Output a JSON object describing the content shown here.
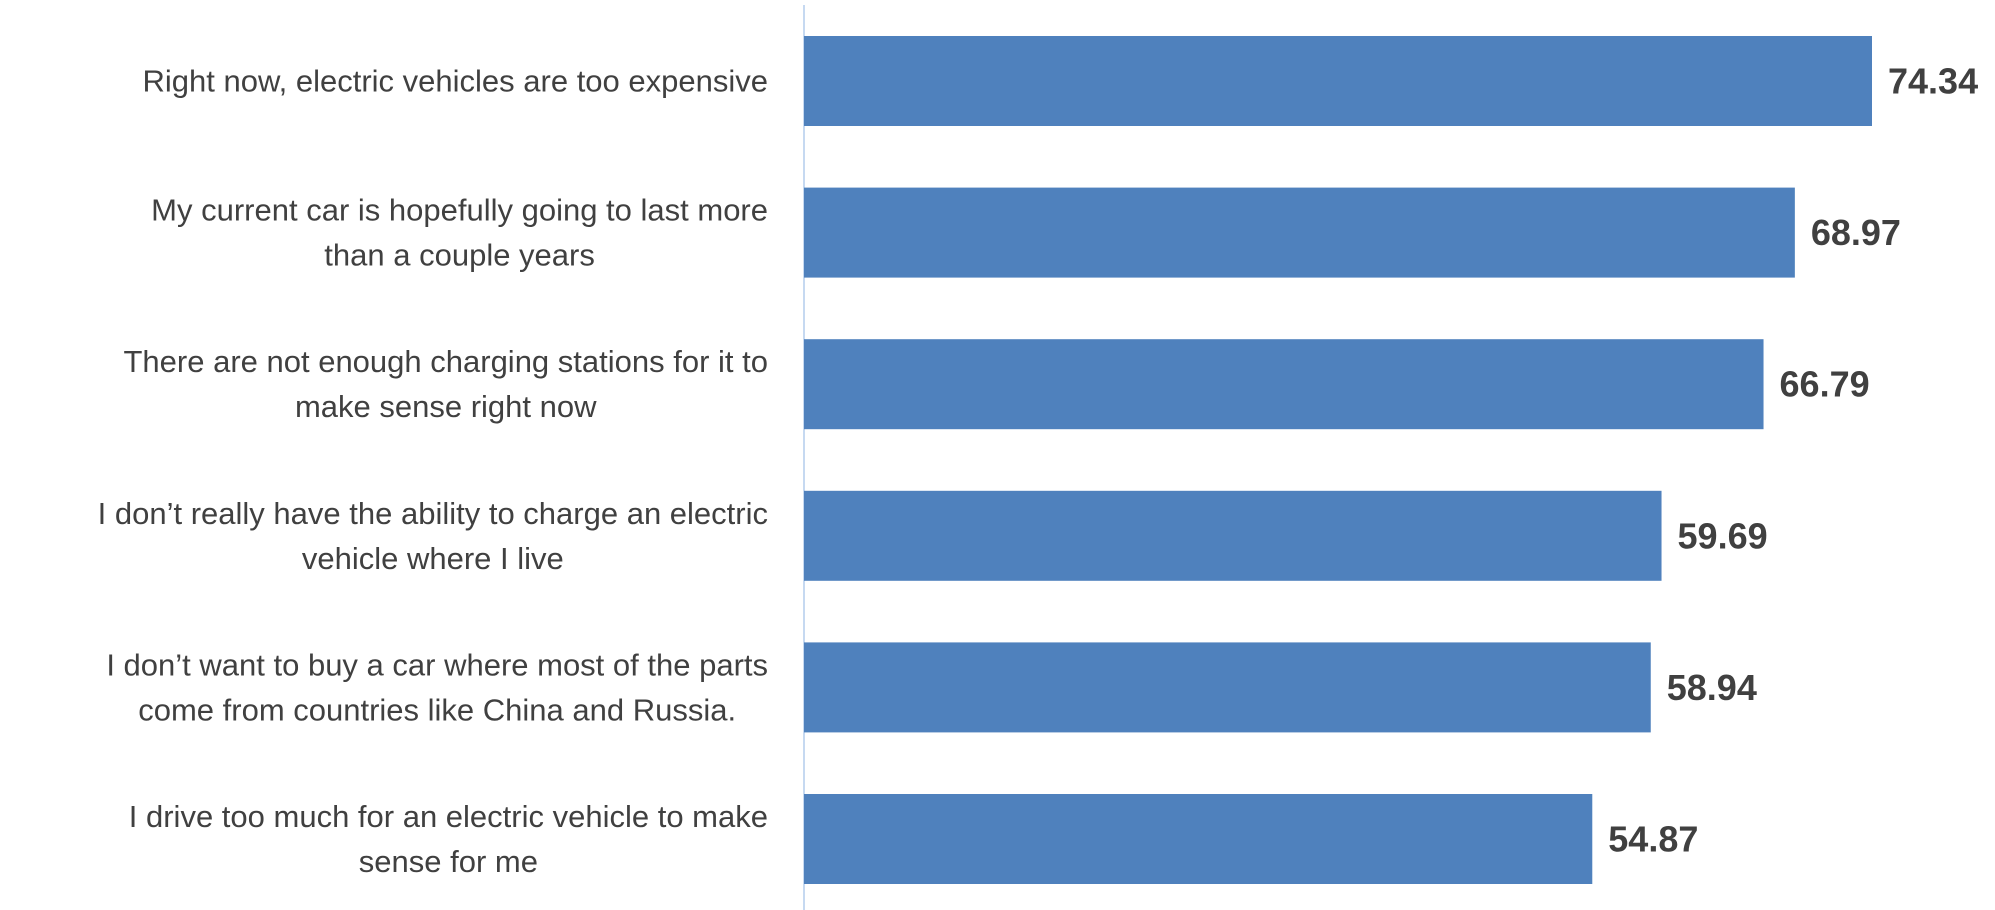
{
  "chart_data": {
    "type": "bar",
    "orientation": "horizontal",
    "categories": [
      [
        "Right now, electric vehicles are too expensive"
      ],
      [
        "My current car is hopefully going to last more",
        "than a couple years"
      ],
      [
        "There are not enough charging stations for it to",
        "make sense right now"
      ],
      [
        "I don’t really have the ability to charge an electric",
        "vehicle where I live"
      ],
      [
        "I don’t want to buy a car where most of the parts",
        "come from countries like China and Russia."
      ],
      [
        "I drive too much for an electric vehicle to make",
        "sense for me"
      ]
    ],
    "values": [
      74.34,
      68.97,
      66.79,
      59.69,
      58.94,
      54.87
    ],
    "value_labels": [
      "74.34",
      "68.97",
      "66.79",
      "59.69",
      "58.94",
      "54.87"
    ],
    "xlim": [
      0,
      74.34
    ],
    "grid": false,
    "legend": "none",
    "colors": {
      "bar": "#4F81BD",
      "axis": "#C6D9F1",
      "text": "#404040"
    }
  }
}
